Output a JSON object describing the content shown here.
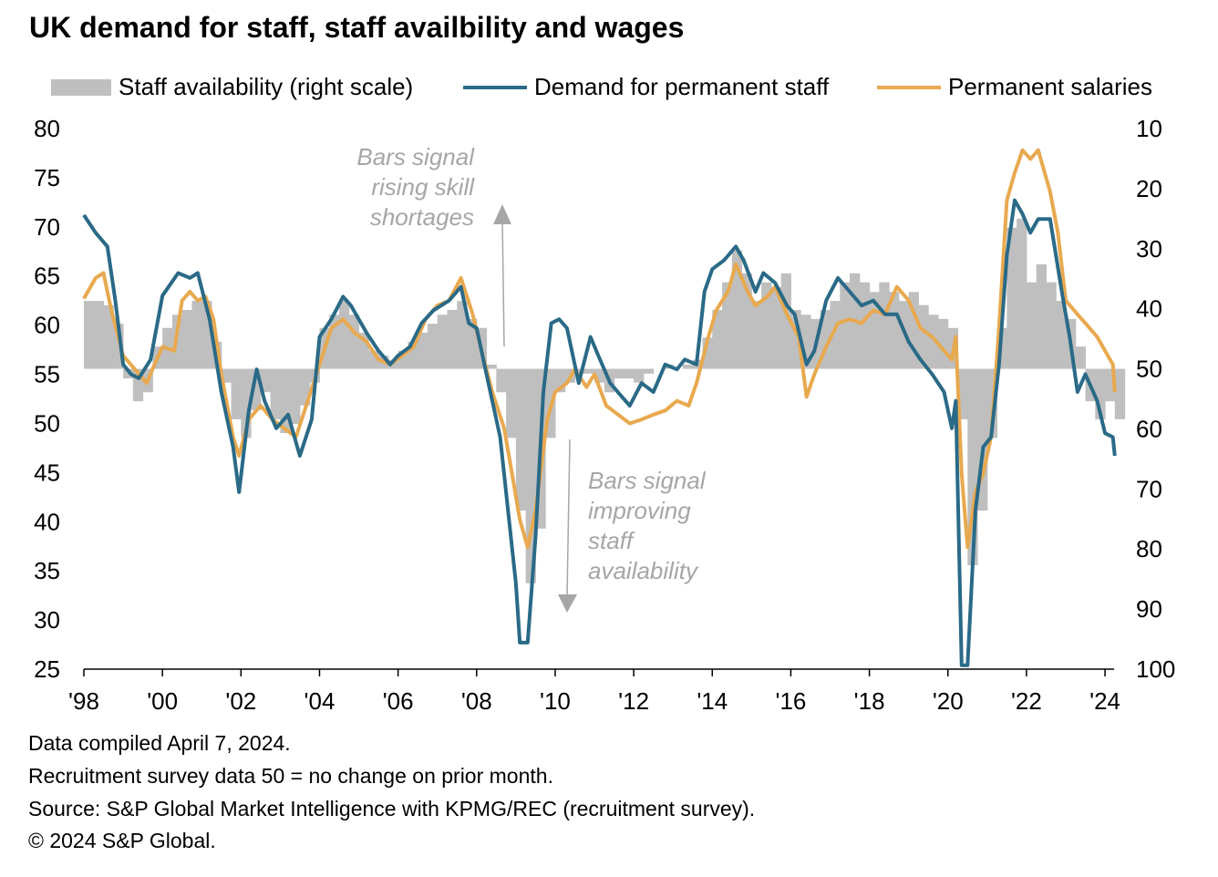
{
  "title": "UK demand for staff, staff availbility  and wages",
  "legend": [
    {
      "label": "Staff availability (right scale)",
      "color": "#bfbfbf"
    },
    {
      "label": "Demand for permanent staff",
      "color": "#2a6a87"
    },
    {
      "label": "Permanent salaries",
      "color": "#e8a94f"
    }
  ],
  "annotations": {
    "up": [
      "Bars signal",
      "rising skill",
      "shortages"
    ],
    "down": [
      "Bars signal",
      "improving",
      "staff",
      "availability"
    ]
  },
  "notes": [
    "Data compiled April 7, 2024.",
    "Recruitment survey data 50 = no change on prior month.",
    "Source: S&P Global Market Intelligence with KPMG/REC (recruitment survey).",
    "© 2024 S&P Global."
  ],
  "chart_data": {
    "type": "bar+line",
    "title": "UK demand for staff, staff availbility  and wages",
    "left_axis": {
      "range": [
        25,
        80
      ],
      "ticks": [
        "80",
        "75",
        "70",
        "65",
        "60",
        "55",
        "50",
        "45",
        "40",
        "35",
        "30",
        "25"
      ]
    },
    "right_axis": {
      "range": [
        100,
        10
      ],
      "inverted": true,
      "ticks": [
        "10",
        "20",
        "30",
        "40",
        "50",
        "60",
        "70",
        "80",
        "90",
        "100"
      ]
    },
    "x_ticks": [
      "'98",
      "'00",
      "'02",
      "'04",
      "'06",
      "'08",
      "'10",
      "'12",
      "'14",
      "'16",
      "'18",
      "'20",
      "'22",
      "'24"
    ],
    "bar_baseline_right": 50,
    "series": [
      {
        "name": "Staff availability (right scale)",
        "axis": "right",
        "type": "bar",
        "start": 1998,
        "step": 0.25,
        "values": [
          38.7,
          38.7,
          39.4,
          42.5,
          51.6,
          55.4,
          53.9,
          46.3,
          43.2,
          41,
          40.2,
          38.7,
          38.7,
          45.5,
          52.3,
          58.4,
          61.5,
          56.9,
          53.9,
          58.4,
          60.7,
          59.2,
          56.1,
          52.3,
          43.2,
          41,
          38.7,
          41,
          44,
          47,
          47.8,
          48.5,
          47,
          45.5,
          44,
          42.5,
          41,
          40.2,
          38.7,
          41.7,
          43.2,
          49.3,
          53.9,
          61.5,
          73.6,
          85.7,
          76.6,
          61.5,
          53.9,
          52.3,
          50.8,
          50.8,
          52.3,
          53.9,
          51.6,
          51.6,
          52.3,
          50.8,
          50,
          49.3,
          50,
          49.3,
          48.5,
          44.8,
          40.2,
          35.6,
          30.3,
          34.1,
          38.7,
          35.6,
          36.4,
          34.1,
          40.2,
          41,
          41.7,
          40.2,
          38.7,
          35.6,
          34.1,
          35.6,
          37.2,
          35.6,
          37.2,
          38.7,
          37.2,
          39.4,
          41,
          41.7,
          43.2,
          58.4,
          82.7,
          73.6,
          61.5,
          43.2,
          26.5,
          25,
          35.6,
          32.6,
          35.6,
          38.7,
          41.7,
          46.3,
          55.4,
          58.4,
          55.4,
          58.4
        ]
      },
      {
        "name": "Demand for permanent staff",
        "axis": "left",
        "type": "line",
        "points": [
          [
            1998,
            71.2
          ],
          [
            1998.3,
            69.4
          ],
          [
            1998.6,
            68
          ],
          [
            1998.8,
            62.5
          ],
          [
            1999,
            56
          ],
          [
            1999.2,
            55
          ],
          [
            1999.4,
            54.6
          ],
          [
            1999.7,
            56.5
          ],
          [
            2000,
            63
          ],
          [
            2000.4,
            65.3
          ],
          [
            2000.7,
            64.8
          ],
          [
            2000.9,
            65.3
          ],
          [
            2001.2,
            60.6
          ],
          [
            2001.5,
            53.2
          ],
          [
            2001.8,
            47.6
          ],
          [
            2001.95,
            43
          ],
          [
            2002.2,
            51.3
          ],
          [
            2002.4,
            55.5
          ],
          [
            2002.6,
            52.3
          ],
          [
            2002.9,
            49.5
          ],
          [
            2003.2,
            50.9
          ],
          [
            2003.5,
            46.7
          ],
          [
            2003.8,
            50.4
          ],
          [
            2004,
            58.8
          ],
          [
            2004.3,
            60.6
          ],
          [
            2004.6,
            62.9
          ],
          [
            2004.8,
            62
          ],
          [
            2005.2,
            59.2
          ],
          [
            2005.5,
            57.4
          ],
          [
            2005.8,
            56
          ],
          [
            2006,
            56.9
          ],
          [
            2006.3,
            57.8
          ],
          [
            2006.6,
            60.2
          ],
          [
            2006.9,
            61.5
          ],
          [
            2007.3,
            62.5
          ],
          [
            2007.6,
            63.9
          ],
          [
            2007.8,
            60.2
          ],
          [
            2008,
            59.7
          ],
          [
            2008.3,
            54.1
          ],
          [
            2008.6,
            48.6
          ],
          [
            2008.8,
            41.1
          ],
          [
            2009,
            33.7
          ],
          [
            2009.1,
            27.7
          ],
          [
            2009.3,
            27.7
          ],
          [
            2009.5,
            38.4
          ],
          [
            2009.7,
            53.2
          ],
          [
            2009.9,
            60.2
          ],
          [
            2010.1,
            60.6
          ],
          [
            2010.3,
            59.7
          ],
          [
            2010.6,
            54.1
          ],
          [
            2010.9,
            58.8
          ],
          [
            2011.1,
            56.9
          ],
          [
            2011.4,
            54.1
          ],
          [
            2011.7,
            52.7
          ],
          [
            2011.9,
            51.8
          ],
          [
            2012.2,
            54.1
          ],
          [
            2012.5,
            53.2
          ],
          [
            2012.8,
            56
          ],
          [
            2013.1,
            55.5
          ],
          [
            2013.3,
            56.5
          ],
          [
            2013.6,
            56
          ],
          [
            2013.8,
            63.4
          ],
          [
            2014,
            65.7
          ],
          [
            2014.3,
            66.6
          ],
          [
            2014.6,
            68
          ],
          [
            2014.8,
            66.6
          ],
          [
            2015.1,
            63.4
          ],
          [
            2015.3,
            65.3
          ],
          [
            2015.6,
            64.3
          ],
          [
            2015.9,
            62
          ],
          [
            2016.1,
            61.1
          ],
          [
            2016.4,
            56
          ],
          [
            2016.6,
            57.4
          ],
          [
            2016.9,
            62.5
          ],
          [
            2017.2,
            64.8
          ],
          [
            2017.5,
            63.4
          ],
          [
            2017.8,
            62
          ],
          [
            2018.1,
            62.5
          ],
          [
            2018.4,
            61.1
          ],
          [
            2018.7,
            61.1
          ],
          [
            2019,
            58.3
          ],
          [
            2019.3,
            56.5
          ],
          [
            2019.6,
            55
          ],
          [
            2019.9,
            53.2
          ],
          [
            2020.1,
            49.5
          ],
          [
            2020.2,
            52.3
          ],
          [
            2020.35,
            25.4
          ],
          [
            2020.5,
            25.4
          ],
          [
            2020.7,
            41.1
          ],
          [
            2020.9,
            47.6
          ],
          [
            2021.1,
            48.6
          ],
          [
            2021.3,
            56
          ],
          [
            2021.5,
            67.1
          ],
          [
            2021.7,
            72.7
          ],
          [
            2021.9,
            71.3
          ],
          [
            2022.1,
            69.4
          ],
          [
            2022.3,
            70.8
          ],
          [
            2022.6,
            70.8
          ],
          [
            2022.9,
            63.4
          ],
          [
            2023.1,
            58.8
          ],
          [
            2023.3,
            53.2
          ],
          [
            2023.5,
            55
          ],
          [
            2023.8,
            52.3
          ],
          [
            2024,
            49
          ],
          [
            2024.2,
            48.6
          ],
          [
            2024.25,
            46.7
          ]
        ]
      },
      {
        "name": "Permanent salaries",
        "axis": "left",
        "type": "line",
        "points": [
          [
            1998,
            62.7
          ],
          [
            1998.3,
            64.8
          ],
          [
            1998.5,
            65.3
          ],
          [
            1998.7,
            61.5
          ],
          [
            1999,
            56.9
          ],
          [
            1999.3,
            55.5
          ],
          [
            1999.6,
            54.1
          ],
          [
            1999.8,
            56
          ],
          [
            2000,
            57.8
          ],
          [
            2000.3,
            57.4
          ],
          [
            2000.5,
            62.5
          ],
          [
            2000.7,
            63.4
          ],
          [
            2000.9,
            62.5
          ],
          [
            2001.1,
            62.9
          ],
          [
            2001.3,
            60.6
          ],
          [
            2001.5,
            55
          ],
          [
            2001.8,
            48.6
          ],
          [
            2001.95,
            46.7
          ],
          [
            2002.2,
            50.4
          ],
          [
            2002.5,
            51.8
          ],
          [
            2002.8,
            50.4
          ],
          [
            2003.1,
            49.5
          ],
          [
            2003.4,
            48.6
          ],
          [
            2003.7,
            52.3
          ],
          [
            2004,
            56
          ],
          [
            2004.3,
            59.7
          ],
          [
            2004.6,
            60.6
          ],
          [
            2004.9,
            59.2
          ],
          [
            2005.2,
            58.3
          ],
          [
            2005.5,
            56.5
          ],
          [
            2005.8,
            56
          ],
          [
            2006.1,
            56.9
          ],
          [
            2006.4,
            57.8
          ],
          [
            2006.7,
            60.6
          ],
          [
            2007,
            62
          ],
          [
            2007.3,
            62.5
          ],
          [
            2007.6,
            64.8
          ],
          [
            2007.9,
            61.1
          ],
          [
            2008.1,
            57.8
          ],
          [
            2008.4,
            53.2
          ],
          [
            2008.7,
            49.5
          ],
          [
            2008.9,
            44.9
          ],
          [
            2009.1,
            40.2
          ],
          [
            2009.3,
            37.4
          ],
          [
            2009.5,
            41.1
          ],
          [
            2009.8,
            50.4
          ],
          [
            2010,
            53.2
          ],
          [
            2010.3,
            54.1
          ],
          [
            2010.5,
            55.5
          ],
          [
            2010.8,
            53.7
          ],
          [
            2011,
            55
          ],
          [
            2011.3,
            51.8
          ],
          [
            2011.6,
            50.9
          ],
          [
            2011.9,
            50
          ],
          [
            2012.2,
            50.4
          ],
          [
            2012.5,
            50.9
          ],
          [
            2012.8,
            51.3
          ],
          [
            2013.1,
            52.3
          ],
          [
            2013.4,
            51.8
          ],
          [
            2013.6,
            54.1
          ],
          [
            2013.9,
            58.8
          ],
          [
            2014.1,
            61.5
          ],
          [
            2014.4,
            63.4
          ],
          [
            2014.6,
            66.2
          ],
          [
            2014.9,
            63.4
          ],
          [
            2015.1,
            62
          ],
          [
            2015.4,
            62.9
          ],
          [
            2015.6,
            63.9
          ],
          [
            2015.9,
            61.1
          ],
          [
            2016.2,
            58.8
          ],
          [
            2016.4,
            52.7
          ],
          [
            2016.6,
            55
          ],
          [
            2016.9,
            57.8
          ],
          [
            2017.2,
            60.2
          ],
          [
            2017.5,
            60.6
          ],
          [
            2017.8,
            60.2
          ],
          [
            2018.1,
            61.5
          ],
          [
            2018.4,
            61.1
          ],
          [
            2018.7,
            63.9
          ],
          [
            2019,
            62.5
          ],
          [
            2019.3,
            59.7
          ],
          [
            2019.6,
            58.8
          ],
          [
            2019.9,
            57.4
          ],
          [
            2020.1,
            56.5
          ],
          [
            2020.2,
            58.8
          ],
          [
            2020.35,
            44.9
          ],
          [
            2020.5,
            37.4
          ],
          [
            2020.7,
            43
          ],
          [
            2020.9,
            44.9
          ],
          [
            2021.1,
            48.6
          ],
          [
            2021.3,
            59.7
          ],
          [
            2021.5,
            72.7
          ],
          [
            2021.7,
            75.5
          ],
          [
            2021.9,
            77.8
          ],
          [
            2022.1,
            76.9
          ],
          [
            2022.3,
            77.8
          ],
          [
            2022.6,
            73.6
          ],
          [
            2022.8,
            69.4
          ],
          [
            2023,
            62.5
          ],
          [
            2023.3,
            61.1
          ],
          [
            2023.5,
            60.2
          ],
          [
            2023.8,
            58.8
          ],
          [
            2024,
            57.4
          ],
          [
            2024.2,
            56
          ],
          [
            2024.25,
            53.2
          ]
        ]
      }
    ]
  }
}
